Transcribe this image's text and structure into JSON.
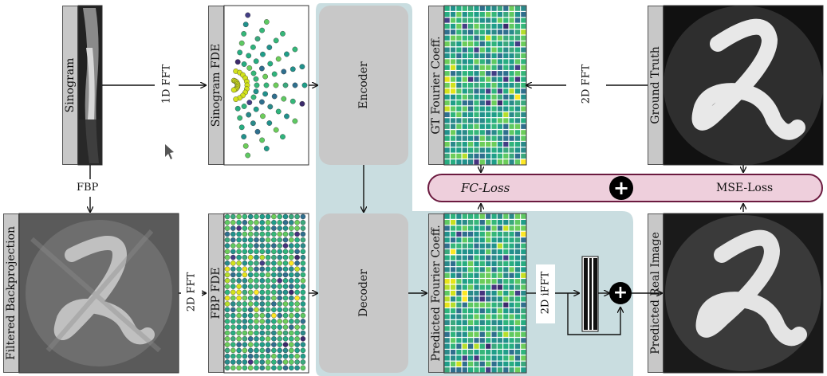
{
  "labels": {
    "sinogram": "Sinogram",
    "sinogram_fde": "Sinogram FDE",
    "gt_fourier": "GT Fourier Coeff.",
    "ground_truth": "Ground Truth",
    "filtered_bp": "Filtered Backprojection",
    "fbp_fde": "FBP FDE",
    "pred_fourier": "Predicted Fourier Coeff.",
    "pred_real": "Predicted Real Image",
    "encoder": "Encoder",
    "decoder": "Decoder"
  },
  "edges": {
    "fft1d": "1D FFT",
    "fbp": "FBP",
    "fft2d_left": "2D FFT",
    "fft2d_right": "2D FFT",
    "ifft": "2D iFFT"
  },
  "loss": {
    "fc": "FC-Loss",
    "mse": "MSE-Loss",
    "plus": "+"
  },
  "colors": {
    "latent_bg": "#c9dde0",
    "loss_fill": "#eecfdc",
    "loss_border": "#6b1a3f",
    "block_grey": "#c8c8c8"
  }
}
